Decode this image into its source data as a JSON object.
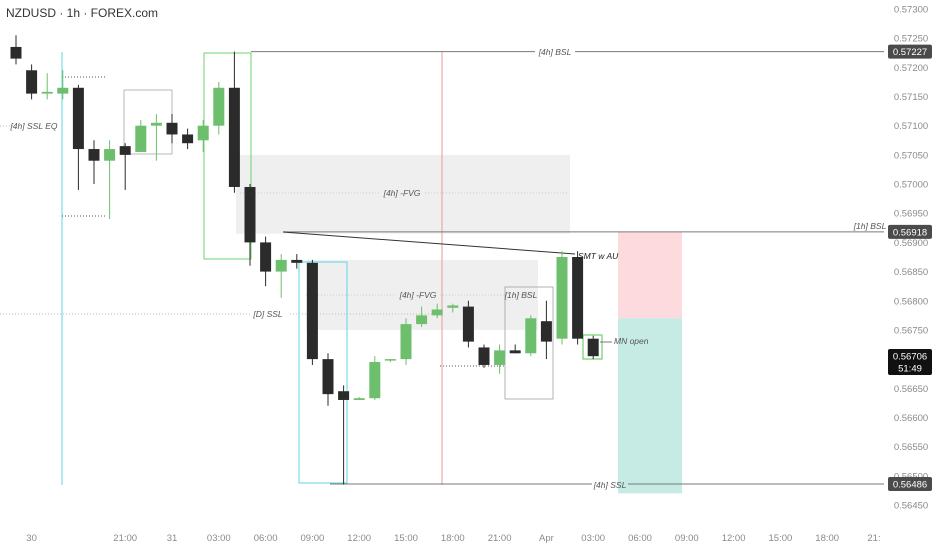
{
  "header": {
    "title": "NZDUSD · 1h · FOREX.com"
  },
  "chart_data": {
    "type": "candlestick",
    "symbol": "NZDUSD",
    "timeframe": "1h",
    "source": "FOREX.com",
    "price_axis": {
      "ticks": [
        "0.57300",
        "0.57250",
        "0.57200",
        "0.57150",
        "0.57100",
        "0.57050",
        "0.57000",
        "0.56950",
        "0.56900",
        "0.56850",
        "0.56800",
        "0.56750",
        "0.56700",
        "0.56650",
        "0.56600",
        "0.56550",
        "0.56500",
        "0.56450"
      ],
      "tick_values": [
        0.573,
        0.5725,
        0.572,
        0.5715,
        0.571,
        0.5705,
        0.57,
        0.5695,
        0.569,
        0.5685,
        0.568,
        0.5675,
        0.567,
        0.5665,
        0.566,
        0.5655,
        0.565,
        0.5645
      ]
    },
    "time_axis": {
      "labels": [
        "30",
        "21:00",
        "31",
        "03:00",
        "06:00",
        "09:00",
        "12:00",
        "15:00",
        "18:00",
        "21:00",
        "Apr",
        "03:00",
        "06:00",
        "09:00",
        "12:00",
        "15:00",
        "18:00",
        "21:"
      ],
      "label_bars": [
        1,
        7,
        10,
        13,
        16,
        19,
        22,
        25,
        28,
        31,
        34,
        37,
        40,
        43,
        46,
        49,
        52,
        55
      ]
    },
    "candles": [
      {
        "o": 0.57235,
        "h": 0.57255,
        "l": 0.57205,
        "c": 0.57215
      },
      {
        "o": 0.57195,
        "h": 0.57205,
        "l": 0.57145,
        "c": 0.57155
      },
      {
        "o": 0.57155,
        "h": 0.5719,
        "l": 0.57145,
        "c": 0.57158
      },
      {
        "o": 0.57155,
        "h": 0.57195,
        "l": 0.57145,
        "c": 0.57165
      },
      {
        "o": 0.57165,
        "h": 0.5717,
        "l": 0.5699,
        "c": 0.5706
      },
      {
        "o": 0.5706,
        "h": 0.57075,
        "l": 0.57,
        "c": 0.5704
      },
      {
        "o": 0.5704,
        "h": 0.57075,
        "l": 0.5694,
        "c": 0.5706
      },
      {
        "o": 0.57065,
        "h": 0.5707,
        "l": 0.5699,
        "c": 0.5705
      },
      {
        "o": 0.57055,
        "h": 0.5711,
        "l": 0.57055,
        "c": 0.571
      },
      {
        "o": 0.571,
        "h": 0.5712,
        "l": 0.5704,
        "c": 0.57105
      },
      {
        "o": 0.57105,
        "h": 0.5712,
        "l": 0.5707,
        "c": 0.57085
      },
      {
        "o": 0.57085,
        "h": 0.57095,
        "l": 0.5706,
        "c": 0.5707
      },
      {
        "o": 0.57075,
        "h": 0.5711,
        "l": 0.57055,
        "c": 0.571
      },
      {
        "o": 0.571,
        "h": 0.57175,
        "l": 0.57085,
        "c": 0.57165
      },
      {
        "o": 0.57165,
        "h": 0.57227,
        "l": 0.56985,
        "c": 0.56995
      },
      {
        "o": 0.56995,
        "h": 0.57,
        "l": 0.5686,
        "c": 0.569
      },
      {
        "o": 0.569,
        "h": 0.5691,
        "l": 0.56825,
        "c": 0.5685
      },
      {
        "o": 0.5685,
        "h": 0.5688,
        "l": 0.56805,
        "c": 0.5687
      },
      {
        "o": 0.5687,
        "h": 0.5688,
        "l": 0.56855,
        "c": 0.56865
      },
      {
        "o": 0.56865,
        "h": 0.5687,
        "l": 0.5669,
        "c": 0.567
      },
      {
        "o": 0.567,
        "h": 0.5671,
        "l": 0.5662,
        "c": 0.5664
      },
      {
        "o": 0.56645,
        "h": 0.56655,
        "l": 0.56485,
        "c": 0.5663
      },
      {
        "o": 0.5663,
        "h": 0.56635,
        "l": 0.5663,
        "c": 0.56633
      },
      {
        "o": 0.56633,
        "h": 0.56705,
        "l": 0.5663,
        "c": 0.56695
      },
      {
        "o": 0.56698,
        "h": 0.567,
        "l": 0.56695,
        "c": 0.567
      },
      {
        "o": 0.567,
        "h": 0.5677,
        "l": 0.5669,
        "c": 0.5676
      },
      {
        "o": 0.5676,
        "h": 0.5679,
        "l": 0.56755,
        "c": 0.56775
      },
      {
        "o": 0.56775,
        "h": 0.56795,
        "l": 0.5677,
        "c": 0.56785
      },
      {
        "o": 0.56788,
        "h": 0.56795,
        "l": 0.5678,
        "c": 0.56792
      },
      {
        "o": 0.5679,
        "h": 0.568,
        "l": 0.5672,
        "c": 0.5673
      },
      {
        "o": 0.5672,
        "h": 0.56725,
        "l": 0.56685,
        "c": 0.5669
      },
      {
        "o": 0.5669,
        "h": 0.56725,
        "l": 0.56675,
        "c": 0.56715
      },
      {
        "o": 0.56715,
        "h": 0.56725,
        "l": 0.5671,
        "c": 0.5671
      },
      {
        "o": 0.5671,
        "h": 0.56775,
        "l": 0.56705,
        "c": 0.5677
      },
      {
        "o": 0.56765,
        "h": 0.568,
        "l": 0.567,
        "c": 0.5673
      },
      {
        "o": 0.56735,
        "h": 0.56885,
        "l": 0.56725,
        "c": 0.56875
      },
      {
        "o": 0.56875,
        "h": 0.56885,
        "l": 0.56725,
        "c": 0.56735
      },
      {
        "o": 0.56735,
        "h": 0.5674,
        "l": 0.567,
        "c": 0.56705
      }
    ],
    "levels": [
      {
        "label": "[4h] BSL",
        "price": 0.57227,
        "badge": "0.57227"
      },
      {
        "label": "[1h] BSL",
        "price": 0.56918,
        "badge": "0.56918"
      },
      {
        "label": "[4h] SSL",
        "price": 0.56486,
        "badge": "0.56486"
      },
      {
        "label": "[D] SSL",
        "price": 0.5677
      },
      {
        "label": "[4h] SSL EQ",
        "price": 0.571
      }
    ],
    "zones": [
      {
        "label": "[4h] -FVG",
        "top": 0.5705,
        "bottom": 0.56915
      },
      {
        "label": "[4h] -FVG",
        "top": 0.5687,
        "bottom": 0.5675
      },
      {
        "label": "[1h] BSL",
        "top": 0.568,
        "bottom": 0.5663
      }
    ],
    "annotations": {
      "smt": "SMT w AU",
      "mn_open": "MN open"
    },
    "current_price": {
      "value": "0.56706",
      "countdown": "51:49"
    },
    "position": {
      "entry": 0.5677,
      "stop": 0.56918,
      "target": 0.5647
    }
  },
  "colors": {
    "bull": "#6dbf6d",
    "bear": "#2b2b2b",
    "level_line": "#7a7a7a",
    "stop_zone": "#fcdade",
    "target_zone": "#c5ebe4",
    "fvg_zone": "#efefef",
    "cyan": "#5fd6e0",
    "green_box": "#6ed36e",
    "red_line": "#ea9a9a",
    "badge_bg": "#4b4b4b"
  }
}
